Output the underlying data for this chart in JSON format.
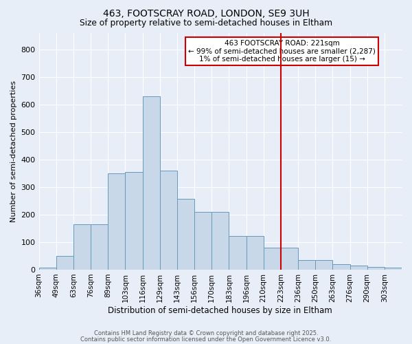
{
  "title1": "463, FOOTSCRAY ROAD, LONDON, SE9 3UH",
  "title2": "Size of property relative to semi-detached houses in Eltham",
  "xlabel": "Distribution of semi-detached houses by size in Eltham",
  "ylabel": "Number of semi-detached properties",
  "bin_labels": [
    "36sqm",
    "49sqm",
    "63sqm",
    "76sqm",
    "89sqm",
    "103sqm",
    "116sqm",
    "129sqm",
    "143sqm",
    "156sqm",
    "170sqm",
    "183sqm",
    "196sqm",
    "210sqm",
    "223sqm",
    "236sqm",
    "250sqm",
    "263sqm",
    "276sqm",
    "290sqm",
    "303sqm"
  ],
  "bar_heights": [
    8,
    50,
    165,
    165,
    350,
    355,
    630,
    360,
    258,
    210,
    210,
    122,
    122,
    80,
    80,
    35,
    35,
    20,
    15,
    10,
    8
  ],
  "bar_color": "#c8d8e8",
  "bar_edgecolor": "#6699bb",
  "bg_color": "#e8eef8",
  "grid_color": "#ffffff",
  "redline_index": 14,
  "annotation_text": "463 FOOTSCRAY ROAD: 221sqm\n← 99% of semi-detached houses are smaller (2,287)\n1% of semi-detached houses are larger (15) →",
  "annotation_box_color": "#ffffff",
  "annotation_border_color": "#cc0000",
  "footer1": "Contains HM Land Registry data © Crown copyright and database right 2025.",
  "footer2": "Contains public sector information licensed under the Open Government Licence v3.0.",
  "ylim": [
    0,
    860
  ],
  "yticks": [
    0,
    100,
    200,
    300,
    400,
    500,
    600,
    700,
    800
  ]
}
